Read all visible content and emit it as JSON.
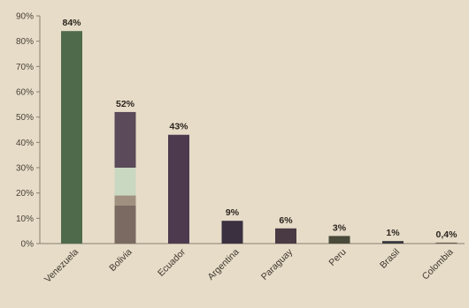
{
  "chart_data": {
    "type": "bar",
    "title": "",
    "xlabel": "",
    "ylabel": "",
    "ylim": [
      0,
      90
    ],
    "yticks": [
      {
        "value": 0,
        "label": "0%"
      },
      {
        "value": 10,
        "label": "10%"
      },
      {
        "value": 20,
        "label": "20%"
      },
      {
        "value": 30,
        "label": "30%"
      },
      {
        "value": 40,
        "label": "40%"
      },
      {
        "value": 50,
        "label": "50%"
      },
      {
        "value": 60,
        "label": "60%"
      },
      {
        "value": 70,
        "label": "70%"
      },
      {
        "value": 80,
        "label": "80%"
      },
      {
        "value": 90,
        "label": "90%"
      }
    ],
    "grid": false,
    "legend": "none",
    "categories": [
      "Venezuela",
      "Bolivia",
      "Ecuador",
      "Argentina",
      "Paraguay",
      "Peru",
      "Brasil",
      "Colombia"
    ],
    "values": [
      84,
      52,
      43,
      9,
      6,
      3,
      1,
      0.4
    ],
    "data_labels": [
      "84%",
      "52%",
      "43%",
      "9%",
      "6%",
      "3%",
      "1%",
      "0,4%"
    ],
    "colors": [
      "#4f6a4a",
      "#5a4a5a",
      "#4d3a4e",
      "#3b3040",
      "#4a3a44",
      "#4a4a3a",
      "#3c3a40",
      "#6b6050"
    ],
    "bolivia_segments": [
      {
        "to": 15,
        "color": "#7a6a62"
      },
      {
        "to": 19,
        "color": "#a09080"
      },
      {
        "to": 30,
        "color": "#c9d8c0"
      },
      {
        "to": 52,
        "color": "#5a4a5a"
      }
    ],
    "axis_color": "#8a8070"
  }
}
